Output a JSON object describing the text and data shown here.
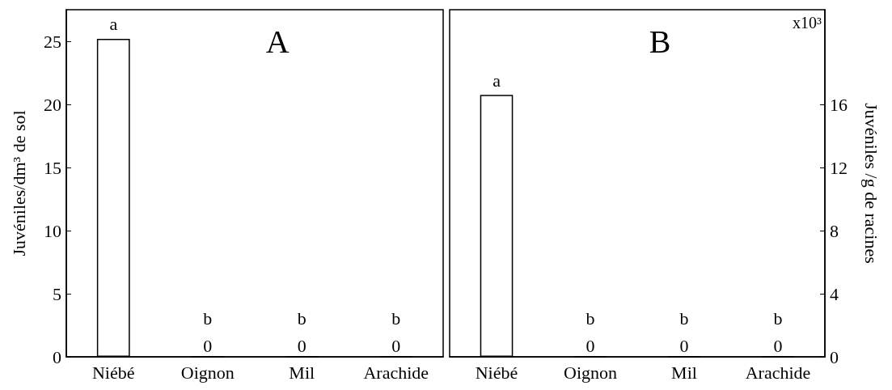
{
  "chart_data": [
    {
      "type": "bar",
      "title": "A",
      "ylabel": "Juvéniles/dm³ de sol",
      "categories": [
        "Niébé",
        "Oignon",
        "Mil",
        "Arachide"
      ],
      "values": [
        25.2,
        0,
        0,
        0
      ],
      "color": "#ffffff",
      "value_labels": [
        null,
        "0",
        "0",
        "0"
      ],
      "ylim": [
        0,
        27.5
      ],
      "yticks": [
        0,
        5,
        10,
        15,
        20,
        25
      ],
      "annotations": [
        "a",
        "b",
        "b",
        "b"
      ]
    },
    {
      "type": "bar",
      "title": "B",
      "y2label": "Juvéniles /g de racines",
      "categories": [
        "Niébé",
        "Oignon",
        "Mil",
        "Arachide"
      ],
      "series": [
        {
          "values": [
            16.6,
            0,
            0,
            0
          ],
          "color": "#ffffff",
          "axis": "y2",
          "value_labels": [
            null,
            "0",
            "0",
            "0"
          ]
        }
      ],
      "y2lim": [
        0,
        22
      ],
      "y2ticks": [
        0,
        4,
        8,
        12,
        16
      ],
      "annotations": [
        "a",
        "b",
        "b",
        "b",
        "x10³"
      ]
    }
  ]
}
